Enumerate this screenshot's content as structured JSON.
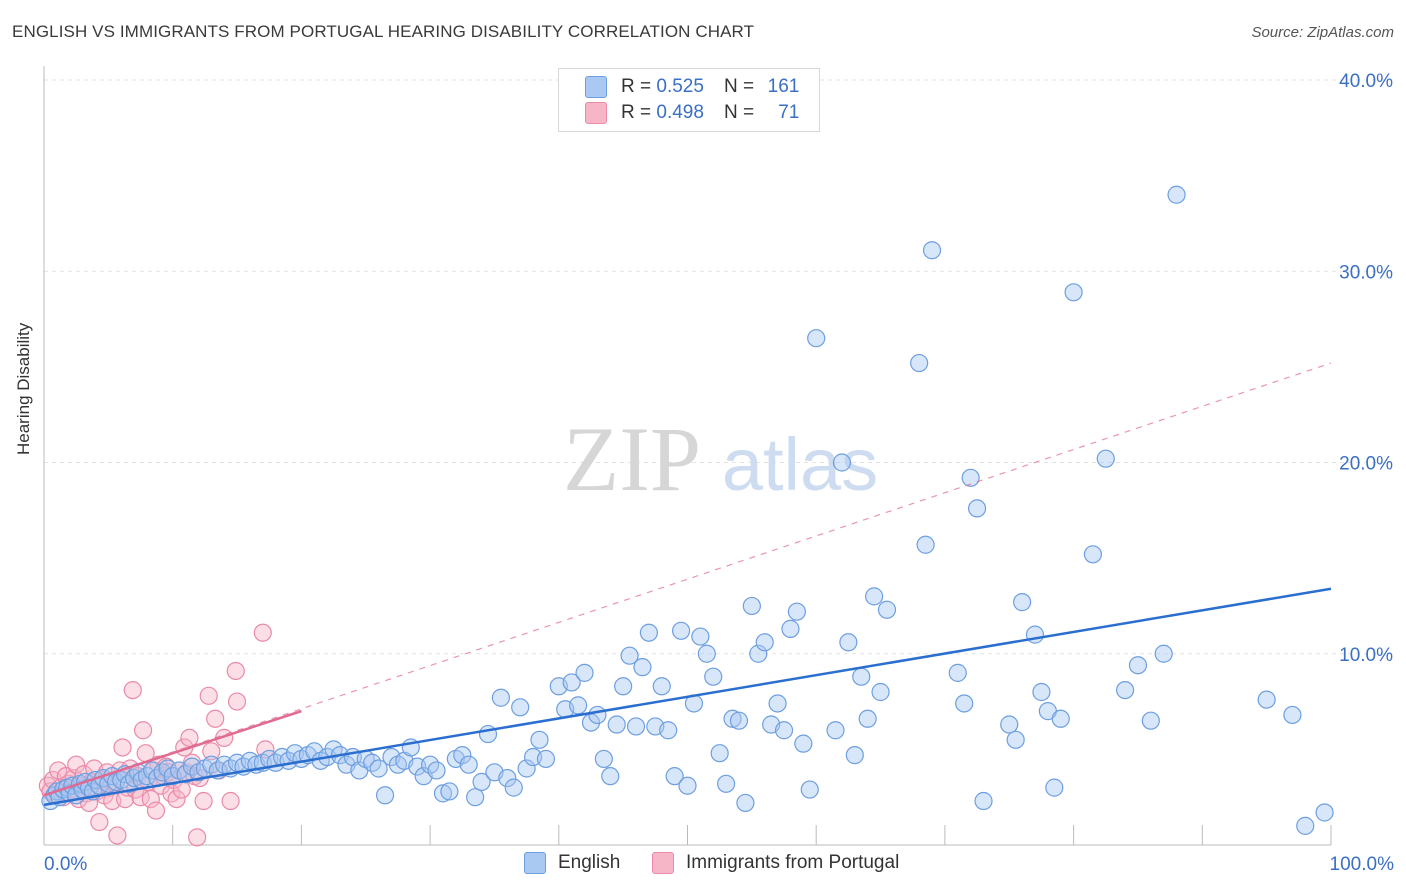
{
  "title": "ENGLISH VS IMMIGRANTS FROM PORTUGAL HEARING DISABILITY CORRELATION CHART",
  "source": "Source: ZipAtlas.com",
  "watermark": {
    "zip": "ZIP",
    "atlas": "atlas"
  },
  "legend": {
    "rows": [
      {
        "r_label": "R =",
        "r_value": "0.525",
        "n_label": "N =",
        "n_value": "161",
        "color": "#a9c8f2"
      },
      {
        "r_label": "R =",
        "r_value": "0.498",
        "n_label": "N =",
        "n_value": "71",
        "color": "#f6b6c8"
      }
    ]
  },
  "colors": {
    "english_fill": "#a9c8f2",
    "english_stroke": "#6d9fe0",
    "english_line": "#2a6fd0",
    "portugal_fill": "#f6b6c8",
    "portugal_stroke": "#ea8aa8",
    "portugal_line": "#e06a90",
    "grid": "#e2e2e2",
    "tick_label": "#3a6fc4"
  },
  "chart_data": {
    "type": "scatter",
    "title": "ENGLISH VS IMMIGRANTS FROM PORTUGAL HEARING DISABILITY CORRELATION CHART",
    "xlabel": "",
    "ylabel": "Hearing Disability",
    "xlim": [
      0,
      100
    ],
    "ylim": [
      0,
      40
    ],
    "x_tick_labels": [
      "0.0%",
      "100.0%"
    ],
    "y_ticks": [
      10,
      20,
      30,
      40
    ],
    "y_tick_labels": [
      "10.0%",
      "20.0%",
      "30.0%",
      "40.0%"
    ],
    "grid": true,
    "legend_position": "bottom-center",
    "series": [
      {
        "name": "English",
        "trend": {
          "x": [
            0,
            100
          ],
          "y": [
            2.1,
            13.4
          ]
        },
        "points": [
          [
            0.5,
            2.3
          ],
          [
            0.8,
            2.6
          ],
          [
            1.0,
            2.8
          ],
          [
            1.2,
            2.5
          ],
          [
            1.5,
            2.9
          ],
          [
            1.8,
            3.0
          ],
          [
            2.0,
            2.7
          ],
          [
            2.2,
            3.1
          ],
          [
            2.5,
            2.6
          ],
          [
            2.8,
            3.2
          ],
          [
            3.0,
            2.9
          ],
          [
            3.2,
            3.3
          ],
          [
            3.5,
            3.0
          ],
          [
            3.8,
            2.8
          ],
          [
            4.0,
            3.4
          ],
          [
            4.3,
            3.1
          ],
          [
            4.6,
            3.5
          ],
          [
            5.0,
            3.2
          ],
          [
            5.3,
            3.6
          ],
          [
            5.6,
            3.3
          ],
          [
            6.0,
            3.4
          ],
          [
            6.3,
            3.7
          ],
          [
            6.6,
            3.2
          ],
          [
            7.0,
            3.5
          ],
          [
            7.3,
            3.8
          ],
          [
            7.6,
            3.4
          ],
          [
            8.0,
            3.6
          ],
          [
            8.4,
            3.9
          ],
          [
            8.8,
            3.5
          ],
          [
            9.2,
            3.8
          ],
          [
            9.6,
            4.0
          ],
          [
            10.0,
            3.6
          ],
          [
            10.5,
            3.9
          ],
          [
            11.0,
            3.7
          ],
          [
            11.5,
            4.1
          ],
          [
            12.0,
            3.8
          ],
          [
            12.5,
            4.0
          ],
          [
            13.0,
            4.2
          ],
          [
            13.5,
            3.9
          ],
          [
            14.0,
            4.2
          ],
          [
            14.5,
            4.0
          ],
          [
            15.0,
            4.3
          ],
          [
            15.5,
            4.1
          ],
          [
            16.0,
            4.4
          ],
          [
            16.5,
            4.2
          ],
          [
            17.0,
            4.3
          ],
          [
            17.5,
            4.5
          ],
          [
            18.0,
            4.3
          ],
          [
            18.5,
            4.6
          ],
          [
            19.0,
            4.4
          ],
          [
            19.5,
            4.8
          ],
          [
            20.0,
            4.5
          ],
          [
            20.5,
            4.7
          ],
          [
            21.0,
            4.9
          ],
          [
            21.5,
            4.4
          ],
          [
            22.0,
            4.6
          ],
          [
            22.5,
            5.0
          ],
          [
            23.0,
            4.7
          ],
          [
            23.5,
            4.2
          ],
          [
            24.0,
            4.6
          ],
          [
            24.5,
            3.9
          ],
          [
            25.0,
            4.5
          ],
          [
            25.5,
            4.3
          ],
          [
            26.0,
            4.0
          ],
          [
            26.5,
            2.6
          ],
          [
            27.0,
            4.6
          ],
          [
            27.5,
            4.2
          ],
          [
            28.0,
            4.4
          ],
          [
            28.5,
            5.1
          ],
          [
            29.0,
            4.1
          ],
          [
            29.5,
            3.6
          ],
          [
            30.0,
            4.2
          ],
          [
            30.5,
            3.9
          ],
          [
            31.0,
            2.7
          ],
          [
            31.5,
            2.8
          ],
          [
            32.0,
            4.5
          ],
          [
            32.5,
            4.7
          ],
          [
            33.0,
            4.2
          ],
          [
            33.5,
            2.5
          ],
          [
            34.0,
            3.3
          ],
          [
            34.5,
            5.8
          ],
          [
            35.0,
            3.8
          ],
          [
            35.5,
            7.7
          ],
          [
            36.0,
            3.5
          ],
          [
            36.5,
            3.0
          ],
          [
            37.0,
            7.2
          ],
          [
            37.5,
            4.0
          ],
          [
            38.0,
            4.6
          ],
          [
            38.5,
            5.5
          ],
          [
            39.0,
            4.5
          ],
          [
            40.0,
            8.3
          ],
          [
            40.5,
            7.1
          ],
          [
            41.0,
            8.5
          ],
          [
            41.5,
            7.3
          ],
          [
            42.0,
            9.0
          ],
          [
            42.5,
            6.4
          ],
          [
            43.0,
            6.8
          ],
          [
            43.5,
            4.5
          ],
          [
            44.0,
            3.6
          ],
          [
            44.5,
            6.3
          ],
          [
            45.0,
            8.3
          ],
          [
            45.5,
            9.9
          ],
          [
            46.0,
            6.2
          ],
          [
            46.5,
            9.3
          ],
          [
            47.0,
            11.1
          ],
          [
            47.5,
            6.2
          ],
          [
            48.0,
            8.3
          ],
          [
            48.5,
            6.0
          ],
          [
            49.0,
            3.6
          ],
          [
            49.5,
            11.2
          ],
          [
            50.0,
            3.1
          ],
          [
            50.5,
            7.4
          ],
          [
            51.0,
            10.9
          ],
          [
            51.5,
            10.0
          ],
          [
            52.0,
            8.8
          ],
          [
            52.5,
            4.8
          ],
          [
            53.0,
            3.2
          ],
          [
            53.5,
            6.6
          ],
          [
            54.0,
            6.5
          ],
          [
            54.5,
            2.2
          ],
          [
            55.0,
            12.5
          ],
          [
            55.5,
            10.0
          ],
          [
            56.0,
            10.6
          ],
          [
            56.5,
            6.3
          ],
          [
            57.0,
            7.4
          ],
          [
            57.5,
            6.0
          ],
          [
            58.0,
            11.3
          ],
          [
            58.5,
            12.2
          ],
          [
            59.0,
            5.3
          ],
          [
            59.5,
            2.9
          ],
          [
            60.0,
            26.5
          ],
          [
            61.5,
            6.0
          ],
          [
            62.0,
            20.0
          ],
          [
            62.5,
            10.6
          ],
          [
            63.0,
            4.7
          ],
          [
            63.5,
            8.8
          ],
          [
            64.0,
            6.6
          ],
          [
            64.5,
            13.0
          ],
          [
            65.0,
            8.0
          ],
          [
            65.5,
            12.3
          ],
          [
            68.0,
            25.2
          ],
          [
            68.5,
            15.7
          ],
          [
            69.0,
            31.1
          ],
          [
            71.0,
            9.0
          ],
          [
            71.5,
            7.4
          ],
          [
            72.0,
            19.2
          ],
          [
            72.5,
            17.6
          ],
          [
            73.0,
            2.3
          ],
          [
            75.0,
            6.3
          ],
          [
            75.5,
            5.5
          ],
          [
            76.0,
            12.7
          ],
          [
            77.0,
            11.0
          ],
          [
            77.5,
            8.0
          ],
          [
            78.0,
            7.0
          ],
          [
            78.5,
            3.0
          ],
          [
            79.0,
            6.6
          ],
          [
            80.0,
            28.9
          ],
          [
            81.5,
            15.2
          ],
          [
            82.5,
            20.2
          ],
          [
            84.0,
            8.1
          ],
          [
            85.0,
            9.4
          ],
          [
            86.0,
            6.5
          ],
          [
            87.0,
            10.0
          ],
          [
            88.0,
            34.0
          ],
          [
            95.0,
            7.6
          ],
          [
            97.0,
            6.8
          ],
          [
            98.0,
            1.0
          ],
          [
            99.5,
            1.7
          ]
        ]
      },
      {
        "name": "Immigrants from Portugal",
        "trend": {
          "x": [
            0,
            20
          ],
          "y": [
            2.6,
            7.0
          ]
        },
        "trend_extended": {
          "x": [
            0,
            100
          ],
          "y": [
            2.6,
            25.2
          ]
        },
        "points": [
          [
            0.3,
            3.1
          ],
          [
            0.5,
            2.8
          ],
          [
            0.7,
            3.4
          ],
          [
            0.9,
            2.6
          ],
          [
            1.1,
            3.9
          ],
          [
            1.3,
            3.0
          ],
          [
            1.5,
            2.5
          ],
          [
            1.7,
            3.6
          ],
          [
            1.9,
            3.2
          ],
          [
            2.1,
            2.9
          ],
          [
            2.3,
            3.5
          ],
          [
            2.5,
            4.2
          ],
          [
            2.7,
            2.4
          ],
          [
            2.9,
            3.1
          ],
          [
            3.1,
            3.7
          ],
          [
            3.3,
            2.7
          ],
          [
            3.5,
            2.2
          ],
          [
            3.7,
            3.3
          ],
          [
            3.9,
            4.0
          ],
          [
            4.1,
            2.8
          ],
          [
            4.3,
            1.2
          ],
          [
            4.5,
            3.4
          ],
          [
            4.7,
            2.6
          ],
          [
            4.9,
            3.8
          ],
          [
            5.1,
            3.0
          ],
          [
            5.3,
            2.3
          ],
          [
            5.5,
            3.2
          ],
          [
            5.7,
            0.5
          ],
          [
            5.9,
            3.9
          ],
          [
            6.1,
            5.1
          ],
          [
            6.3,
            2.4
          ],
          [
            6.5,
            3.0
          ],
          [
            6.7,
            4.0
          ],
          [
            6.9,
            8.1
          ],
          [
            7.1,
            2.9
          ],
          [
            7.3,
            3.6
          ],
          [
            7.5,
            2.5
          ],
          [
            7.7,
            6.0
          ],
          [
            7.9,
            4.8
          ],
          [
            8.1,
            3.3
          ],
          [
            8.3,
            2.4
          ],
          [
            8.5,
            3.9
          ],
          [
            8.7,
            1.8
          ],
          [
            8.9,
            4.2
          ],
          [
            9.1,
            3.1
          ],
          [
            9.3,
            3.6
          ],
          [
            9.5,
            4.1
          ],
          [
            9.7,
            3.8
          ],
          [
            9.9,
            2.7
          ],
          [
            10.1,
            3.4
          ],
          [
            10.3,
            2.4
          ],
          [
            10.5,
            3.9
          ],
          [
            10.7,
            2.9
          ],
          [
            10.9,
            5.1
          ],
          [
            11.1,
            3.8
          ],
          [
            11.3,
            5.6
          ],
          [
            11.5,
            4.3
          ],
          [
            11.7,
            3.6
          ],
          [
            11.9,
            0.4
          ],
          [
            12.1,
            3.5
          ],
          [
            12.4,
            2.3
          ],
          [
            12.8,
            7.8
          ],
          [
            13.0,
            4.9
          ],
          [
            13.3,
            6.6
          ],
          [
            13.6,
            3.9
          ],
          [
            14.0,
            5.6
          ],
          [
            14.5,
            2.3
          ],
          [
            14.9,
            9.1
          ],
          [
            15.0,
            7.5
          ],
          [
            17.0,
            11.1
          ],
          [
            17.2,
            5.0
          ]
        ]
      }
    ]
  }
}
